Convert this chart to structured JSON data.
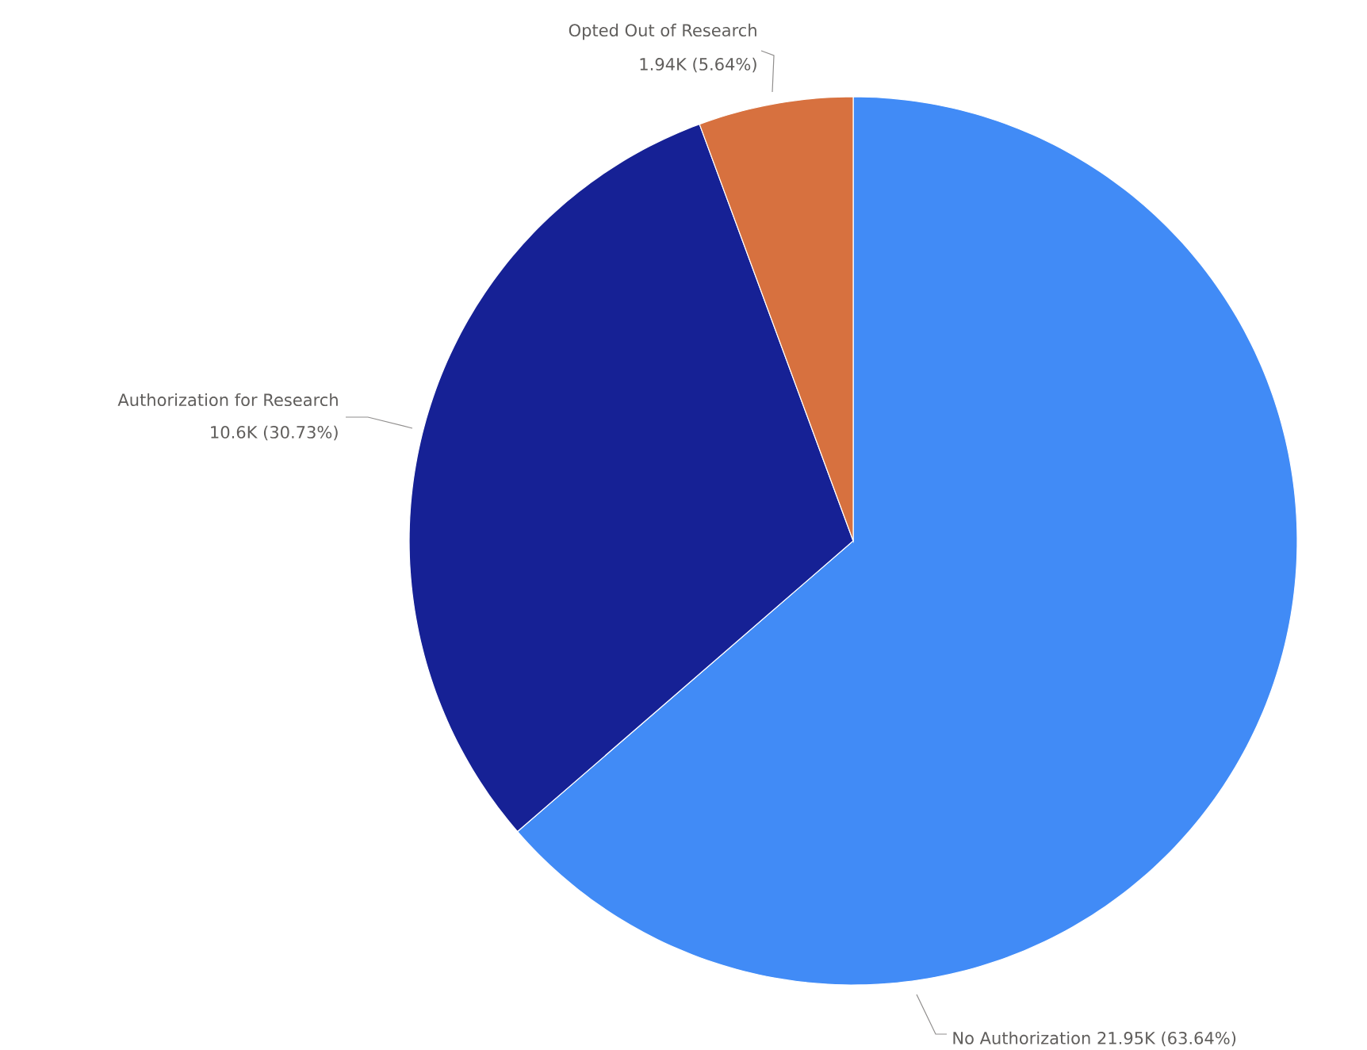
{
  "chart_data": {
    "type": "pie",
    "categories": [
      "No Authorization",
      "Authorization for Research",
      "Opted Out of Research"
    ],
    "values": [
      21950,
      10600,
      1940
    ],
    "value_labels": [
      "21.95K (63.64%)",
      "10.6K (30.73%)",
      "1.94K (5.64%)"
    ],
    "colors": [
      "#418bf6",
      "#162195",
      "#d7713f"
    ]
  }
}
